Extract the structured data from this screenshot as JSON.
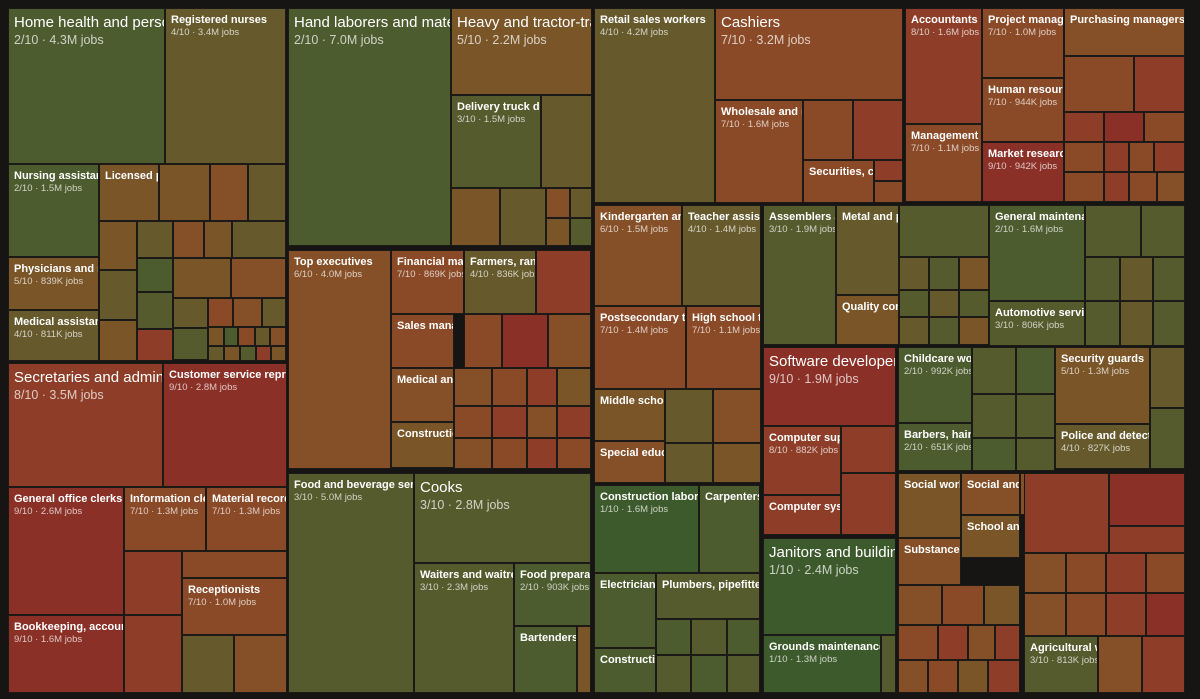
{
  "chart_data": {
    "type": "treemap",
    "value_label": "jobs",
    "score_label": "/10",
    "colors": {
      "1": "#3d5a2c",
      "2": "#4c5c2e",
      "3": "#565b2e",
      "4": "#665a2c",
      "5": "#7a5528",
      "6": "#855028",
      "7": "#8a4a27",
      "8": "#8e3e28",
      "9": "#8a3027",
      "10": "#7e2320",
      "background": "#161513"
    },
    "labeled_occupations": [
      {
        "name": "Home health and personal care aides",
        "score": 2,
        "jobs": "4.3M"
      },
      {
        "name": "Registered nurses",
        "score": 4,
        "jobs": "3.4M"
      },
      {
        "name": "Nursing assistants",
        "score": 2,
        "jobs": "1.5M"
      },
      {
        "name": "Licensed practical nurses"
      },
      {
        "name": "Physicians and surgeons",
        "score": 5,
        "jobs": "839K"
      },
      {
        "name": "Medical assistants",
        "score": 4,
        "jobs": "811K"
      },
      {
        "name": "Hand laborers and material movers",
        "score": 2,
        "jobs": "7.0M"
      },
      {
        "name": "Heavy and tractor-trailer truck drivers",
        "score": 5,
        "jobs": "2.2M"
      },
      {
        "name": "Delivery truck drivers",
        "score": 3,
        "jobs": "1.5M"
      },
      {
        "name": "Retail sales workers",
        "score": 4,
        "jobs": "4.2M"
      },
      {
        "name": "Cashiers",
        "score": 7,
        "jobs": "3.2M"
      },
      {
        "name": "Wholesale and manufacturing sales reps",
        "score": 7,
        "jobs": "1.6M"
      },
      {
        "name": "Securities, commodities, and financial services sales agents"
      },
      {
        "name": "Accountants and auditors",
        "score": 8,
        "jobs": "1.6M"
      },
      {
        "name": "Project management specialists",
        "score": 7,
        "jobs": "1.0M"
      },
      {
        "name": "Purchasing managers"
      },
      {
        "name": "Human resources specialists",
        "score": 7,
        "jobs": "944K"
      },
      {
        "name": "Management analysts",
        "score": 7,
        "jobs": "1.1M"
      },
      {
        "name": "Market research analysts",
        "score": 9,
        "jobs": "942K"
      },
      {
        "name": "Secretaries and administrative assistants",
        "score": 8,
        "jobs": "3.5M"
      },
      {
        "name": "Customer service representatives",
        "score": 9,
        "jobs": "2.8M"
      },
      {
        "name": "General office clerks",
        "score": 9,
        "jobs": "2.6M"
      },
      {
        "name": "Information clerks",
        "score": 7,
        "jobs": "1.3M"
      },
      {
        "name": "Material recording clerks",
        "score": 7,
        "jobs": "1.3M"
      },
      {
        "name": "Receptionists",
        "score": 7,
        "jobs": "1.0M"
      },
      {
        "name": "Bookkeeping, accounting, and auditing clerks",
        "score": 9,
        "jobs": "1.6M"
      },
      {
        "name": "Top executives",
        "score": 6,
        "jobs": "4.0M"
      },
      {
        "name": "Financial managers",
        "score": 7,
        "jobs": "869K"
      },
      {
        "name": "Farmers, ranchers, and agricultural managers",
        "score": 4,
        "jobs": "836K"
      },
      {
        "name": "Sales managers"
      },
      {
        "name": "Medical and health services managers"
      },
      {
        "name": "Construction managers"
      },
      {
        "name": "Food and beverage serving workers",
        "score": 3,
        "jobs": "5.0M"
      },
      {
        "name": "Cooks",
        "score": 3,
        "jobs": "2.8M"
      },
      {
        "name": "Waiters and waitresses",
        "score": 3,
        "jobs": "2.3M"
      },
      {
        "name": "Food preparation workers",
        "score": 2,
        "jobs": "903K"
      },
      {
        "name": "Bartenders"
      },
      {
        "name": "Kindergarten and elementary school teachers",
        "score": 6,
        "jobs": "1.5M"
      },
      {
        "name": "Teacher assistants",
        "score": 4,
        "jobs": "1.4M"
      },
      {
        "name": "Postsecondary teachers",
        "score": 7,
        "jobs": "1.4M"
      },
      {
        "name": "High school teachers",
        "score": 7,
        "jobs": "1.1M"
      },
      {
        "name": "Middle school teachers"
      },
      {
        "name": "Special education teachers"
      },
      {
        "name": "Assemblers and fabricators",
        "score": 3,
        "jobs": "1.9M"
      },
      {
        "name": "Metal and plastic machine workers"
      },
      {
        "name": "Quality control inspectors"
      },
      {
        "name": "General maintenance and repair workers",
        "score": 2,
        "jobs": "1.6M"
      },
      {
        "name": "Automotive service technicians",
        "score": 3,
        "jobs": "806K"
      },
      {
        "name": "Software developers",
        "score": 9,
        "jobs": "1.9M"
      },
      {
        "name": "Computer support specialists",
        "score": 8,
        "jobs": "882K"
      },
      {
        "name": "Computer systems analysts"
      },
      {
        "name": "Childcare workers",
        "score": 2,
        "jobs": "992K"
      },
      {
        "name": "Barbers, hairstylists, and cosmetologists",
        "score": 2,
        "jobs": "651K"
      },
      {
        "name": "Security guards",
        "score": 5,
        "jobs": "1.3M"
      },
      {
        "name": "Police and detectives",
        "score": 4,
        "jobs": "827K"
      },
      {
        "name": "Construction laborers",
        "score": 1,
        "jobs": "1.6M"
      },
      {
        "name": "Carpenters"
      },
      {
        "name": "Electricians"
      },
      {
        "name": "Plumbers, pipefitters, and steamfitters"
      },
      {
        "name": "Construction equipment operators"
      },
      {
        "name": "Janitors and building cleaners",
        "score": 1,
        "jobs": "2.4M"
      },
      {
        "name": "Grounds maintenance workers",
        "score": 1,
        "jobs": "1.3M"
      },
      {
        "name": "Social workers"
      },
      {
        "name": "Social and human service assistants"
      },
      {
        "name": "School and career counselors"
      },
      {
        "name": "Substance abuse counselors"
      },
      {
        "name": "Agricultural workers",
        "score": 3,
        "jobs": "813K"
      }
    ]
  }
}
